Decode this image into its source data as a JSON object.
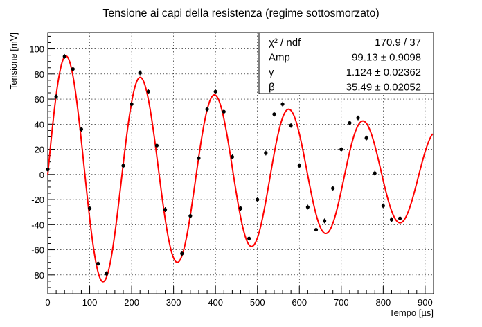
{
  "chart_data": {
    "type": "scatter",
    "title": "Tensione ai capi della resistenza (regime sottosmorzato)",
    "xlabel": "Tempo [µs]",
    "ylabel": "Tensione [mV]",
    "xlim": [
      0,
      920
    ],
    "ylim": [
      -95,
      113
    ],
    "xticks": [
      0,
      100,
      200,
      300,
      400,
      500,
      600,
      700,
      800,
      900
    ],
    "yticks": [
      -80,
      -60,
      -40,
      -20,
      0,
      20,
      40,
      60,
      80,
      100
    ],
    "grid": true,
    "series": [
      {
        "kind": "points",
        "color": "#000000",
        "x": [
          0,
          20,
          40,
          60,
          80,
          100,
          120,
          140,
          180,
          200,
          220,
          240,
          260,
          280,
          320,
          340,
          360,
          380,
          400,
          420,
          440,
          460,
          480,
          500,
          520,
          540,
          560,
          580,
          600,
          620,
          640,
          660,
          680,
          700,
          720,
          740,
          760,
          780,
          800,
          820,
          840
        ],
        "y": [
          4,
          62,
          94,
          84,
          36,
          -27,
          -71,
          -79,
          7,
          56,
          81,
          66,
          23,
          -28,
          -63,
          -33,
          13,
          52,
          66,
          50,
          14,
          -27,
          -51,
          -20,
          17,
          48,
          56,
          39,
          7,
          -26,
          -44,
          -37,
          -11,
          20,
          41,
          45,
          29,
          1,
          -25,
          -36,
          -35
        ]
      },
      {
        "kind": "fit",
        "color": "#ff0000",
        "model": "Amp*exp(-gamma*t/1000)*sin(beta*t/1000)",
        "params": {
          "Amp": 99.13,
          "gamma": 1.124,
          "beta": 35.49
        }
      }
    ],
    "stats_box": {
      "placement": "top-right",
      "rows": [
        {
          "label": "χ² / ndf",
          "value": "170.9 / 37"
        },
        {
          "label": "Amp",
          "value": "99.13 ± 0.9098"
        },
        {
          "label": "γ",
          "value": "1.124 ± 0.02362"
        },
        {
          "label": "β",
          "value": "35.49 ± 0.02052"
        }
      ]
    }
  }
}
